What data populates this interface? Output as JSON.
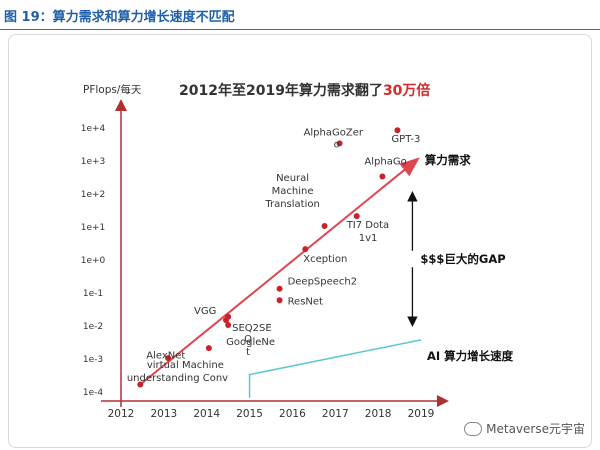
{
  "figure_header": {
    "title": "图 19：算力需求和算力增长速度不匹配"
  },
  "colors": {
    "trend": "#e0454f",
    "point": "#c8232c",
    "hw_line": "#5bc7cf",
    "axis": "#b03030",
    "header_text": "#1f5fa8"
  },
  "chart_data": {
    "type": "scatter",
    "title": "2012年至2019年算力需求翻了30万倍",
    "title_emphasis": "30万倍",
    "ylabel": "PFlops/每天",
    "xlabel": "",
    "y_scale": "log",
    "ylim_exp": [
      -4.3,
      4.3
    ],
    "xlim": [
      2012,
      2019
    ],
    "x_ticks": [
      2012,
      2013,
      2014,
      2015,
      2016,
      2017,
      2018,
      2019
    ],
    "x_tick_labels": [
      "2012",
      "2013",
      "2014",
      "2015",
      "2016",
      "2017",
      "2018",
      "2019"
    ],
    "y_ticks_exp": [
      -4,
      -3,
      -2,
      -1,
      0,
      1,
      2,
      3,
      4
    ],
    "y_tick_labels": [
      "1e-4",
      "1e-3",
      "1e-2",
      "1e-1",
      "1e+0",
      "1e+1",
      "1e+2",
      "1e+3",
      "1e+4"
    ],
    "grid": false,
    "points": [
      {
        "x": 2012.45,
        "y_exp": -3.8,
        "label": "AlexNet"
      },
      {
        "x": 2013.1,
        "y_exp": -3.0,
        "label": ""
      },
      {
        "x": 2014.05,
        "y_exp": -2.7,
        "label": "virtual Machine understanding Conv"
      },
      {
        "x": 2014.45,
        "y_exp": -1.85,
        "label": "VGG"
      },
      {
        "x": 2014.5,
        "y_exp": -1.75,
        "label": "SEQ2SEQ"
      },
      {
        "x": 2014.5,
        "y_exp": -2.0,
        "label": "GoogleNet"
      },
      {
        "x": 2015.7,
        "y_exp": -0.9,
        "label": "DeepSpeech2"
      },
      {
        "x": 2015.7,
        "y_exp": -1.25,
        "label": "ResNet"
      },
      {
        "x": 2016.3,
        "y_exp": 0.3,
        "label": "Xception"
      },
      {
        "x": 2016.75,
        "y_exp": 1.0,
        "label": "Neural Machine Translation"
      },
      {
        "x": 2017.1,
        "y_exp": 3.5,
        "label": "AlphaGoZero"
      },
      {
        "x": 2017.5,
        "y_exp": 1.3,
        "label": "TI7 Dota 1v1"
      },
      {
        "x": 2018.1,
        "y_exp": 2.5,
        "label": "AlphaGo"
      },
      {
        "x": 2018.45,
        "y_exp": 3.9,
        "label": "GPT-3"
      }
    ],
    "annotations": {
      "demand_trend": {
        "from": [
          2012.45,
          -3.8
        ],
        "to": [
          2018.9,
          3.0
        ],
        "label": "算力需求"
      },
      "hardware_growth": {
        "from": [
          2015.0,
          -3.5
        ],
        "to": [
          2019.0,
          -2.45
        ],
        "label": "AI 算力增长速度"
      },
      "gap": {
        "x": 2018.8,
        "top_exp": 1.9,
        "bottom_exp": -1.9,
        "label": "$$$巨大的GAP"
      }
    }
  },
  "watermark": {
    "text": "Metaverse元宇宙"
  }
}
